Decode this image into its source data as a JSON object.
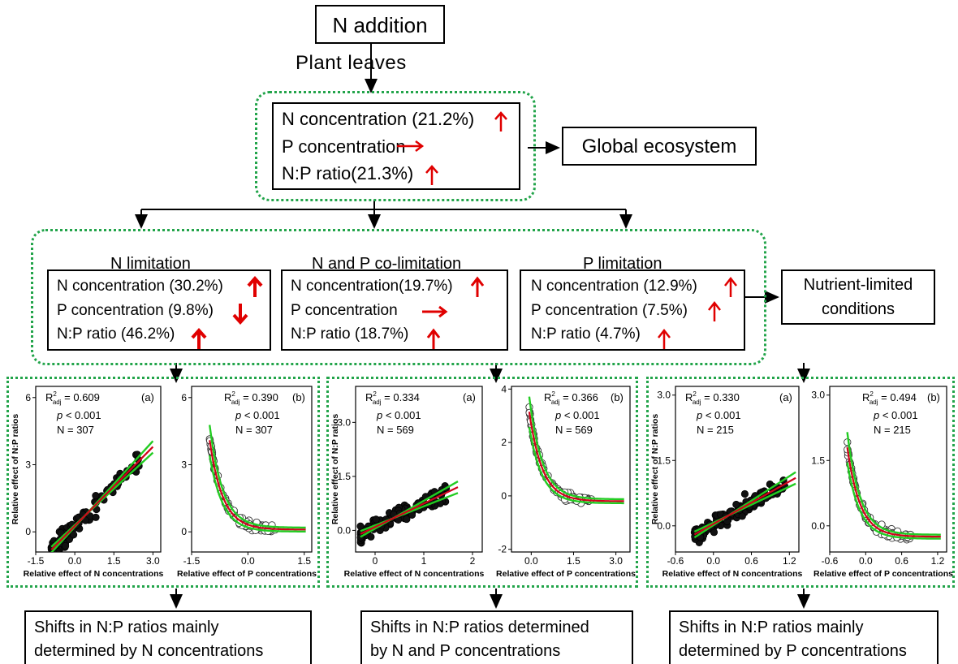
{
  "top": {
    "title": "N addition",
    "via": "Plant leaves"
  },
  "global": {
    "lines": [
      "N concentration (21.2%)",
      "P concentration",
      "N:P ratio(21.3%)"
    ],
    "target": "Global ecosystem"
  },
  "groups": [
    {
      "heading": "N limitation",
      "lines": [
        "N concentration (30.2%)",
        "P concentration (9.8%)",
        "N:P ratio (46.2%)"
      ],
      "trend": [
        "up",
        "down",
        "up"
      ]
    },
    {
      "heading": "N and P co-limitation",
      "lines": [
        "N concentration(19.7%)",
        "P concentration",
        "N:P ratio (18.7%)"
      ],
      "trend": [
        "up",
        "flat",
        "up"
      ]
    },
    {
      "heading": "P limitation",
      "lines": [
        "N concentration (12.9%)",
        "P concentration (7.5%)",
        "N:P ratio (4.7%)"
      ],
      "trend": [
        "up",
        "up",
        "up"
      ]
    }
  ],
  "nutrient_target": {
    "line1": "Nutrient-limited",
    "line2": "conditions"
  },
  "conclusions": [
    {
      "line1": "Shifts in N:P ratios mainly",
      "line2": "determined by  N concentrations"
    },
    {
      "line1": "Shifts in N:P ratios determined",
      "line2": "by N and P concentrations"
    },
    {
      "line1": "Shifts in N:P ratios mainly",
      "line2": "determined by  P concentrations"
    }
  ],
  "colors": {
    "up_arrow": "#e00000",
    "dotted_frame": "#22a44a",
    "fit_line": "#d0021b",
    "ci_band": "#22cc22"
  },
  "chart_data": [
    {
      "type": "scatter",
      "panel": "(a)",
      "group": "N limitation",
      "xlabel": "Relative effect of N concentrations",
      "ylabel": "Relative effect of N:P ratios",
      "xticks": [
        "-1.5",
        "0.0",
        "1.5",
        "3.0"
      ],
      "yticks": [
        "0",
        "3",
        "6"
      ],
      "xlim": [
        -1.5,
        3.3
      ],
      "ylim": [
        -0.9,
        6.5
      ],
      "stats": {
        "r2": "= 0.609",
        "p": "< 0.001",
        "n": "N = 307"
      },
      "fit": "linear",
      "fit_x": [
        -0.9,
        3.0
      ],
      "fit_y": [
        -0.8,
        3.8
      ]
    },
    {
      "type": "scatter",
      "panel": "(b)",
      "group": "N limitation",
      "xlabel": "Relative effect of P concentrations",
      "ylabel": "",
      "xticks": [
        "-1.5",
        "0.0",
        "1.5"
      ],
      "yticks": [
        "0",
        "3",
        "6"
      ],
      "xlim": [
        -1.5,
        1.7
      ],
      "ylim": [
        -0.9,
        6.5
      ],
      "stats": {
        "r2": "= 0.390",
        "p": "< 0.001",
        "n": "N = 307"
      },
      "fit": "exponential",
      "asymptote": 0.1
    },
    {
      "type": "scatter",
      "panel": "(a)",
      "group": "N and P co-limitation",
      "xlabel": "Relative effect of N concentrations",
      "ylabel": "Relative effect of N:P ratios",
      "xticks": [
        "0",
        "1",
        "2"
      ],
      "yticks": [
        "0.0",
        "1.5",
        "3.0"
      ],
      "xlim": [
        -0.4,
        2.2
      ],
      "ylim": [
        -0.6,
        4.0
      ],
      "stats": {
        "r2": "= 0.334",
        "p": "< 0.001",
        "n": "N = 569"
      },
      "fit": "linear",
      "fit_x": [
        -0.3,
        1.7
      ],
      "fit_y": [
        -0.1,
        1.2
      ]
    },
    {
      "type": "scatter",
      "panel": "(b)",
      "group": "N and P co-limitation",
      "xlabel": "Relative effect of P concentrations",
      "ylabel": "",
      "xticks": [
        "0.0",
        "1.5",
        "3.0"
      ],
      "yticks": [
        "-2",
        "0",
        "2",
        "4"
      ],
      "xlim": [
        -0.7,
        3.5
      ],
      "ylim": [
        -2.1,
        4.1
      ],
      "stats": {
        "r2": "= 0.366",
        "p": "< 0.001",
        "n": "N = 569"
      },
      "fit": "exponential",
      "asymptote": -0.2
    },
    {
      "type": "scatter",
      "panel": "(a)",
      "group": "P limitation",
      "xlabel": "Relative effect of N concentrations",
      "ylabel": "Relative effect of N:P ratios",
      "xticks": [
        "-0.6",
        "0.0",
        "0.6",
        "1.2"
      ],
      "yticks": [
        "0.0",
        "1.5",
        "3.0"
      ],
      "xlim": [
        -0.6,
        1.35
      ],
      "ylim": [
        -0.6,
        3.2
      ],
      "stats": {
        "r2": "= 0.330",
        "p": "< 0.001",
        "n": "N = 215"
      },
      "fit": "linear",
      "fit_x": [
        -0.3,
        1.3
      ],
      "fit_y": [
        -0.2,
        1.1
      ]
    },
    {
      "type": "scatter",
      "panel": "(b)",
      "group": "P limitation",
      "xlabel": "Relative effect of P concentrations",
      "ylabel": "",
      "xticks": [
        "-0.6",
        "0.0",
        "0.6",
        "1.2"
      ],
      "yticks": [
        "0.0",
        "1.5",
        "3.0"
      ],
      "xlim": [
        -0.6,
        1.35
      ],
      "ylim": [
        -0.6,
        3.2
      ],
      "stats": {
        "r2": "= 0.494",
        "p": "< 0.001",
        "n": "N = 215"
      },
      "fit": "exponential",
      "asymptote": -0.25
    }
  ]
}
